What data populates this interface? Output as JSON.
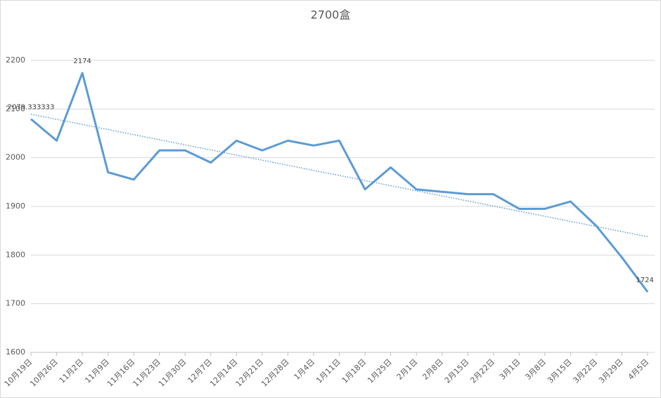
{
  "chart_data": {
    "type": "line",
    "title": "2700盒",
    "categories": [
      "10月19日",
      "10月26日",
      "11月2日",
      "11月9日",
      "11月16日",
      "11月23日",
      "11月30日",
      "12月7日",
      "12月14日",
      "12月21日",
      "12月28日",
      "1月4日",
      "1月11日",
      "1月18日",
      "1月25日",
      "2月1日",
      "2月8日",
      "2月15日",
      "2月22日",
      "3月1日",
      "3月8日",
      "3月15日",
      "3月22日",
      "3月29日",
      "4月5日"
    ],
    "values": [
      2079.333333,
      2035,
      2174,
      1970,
      1955,
      2015,
      2015,
      1990,
      2035,
      2015,
      2035,
      2025,
      2035,
      1935,
      1980,
      1935,
      1930,
      1925,
      1925,
      1895,
      1895,
      1910,
      1860,
      1795,
      1724
    ],
    "value_labels": [
      "2079.333333",
      null,
      "2174",
      null,
      null,
      null,
      null,
      null,
      null,
      null,
      null,
      null,
      null,
      null,
      null,
      null,
      null,
      null,
      null,
      null,
      null,
      null,
      null,
      null,
      "1724"
    ],
    "color": "#5b9bd5",
    "trendline": true,
    "ylim": [
      1600,
      2200
    ],
    "yticks": [
      1600,
      1700,
      1800,
      1900,
      2000,
      2100,
      2200
    ],
    "grid": true
  }
}
